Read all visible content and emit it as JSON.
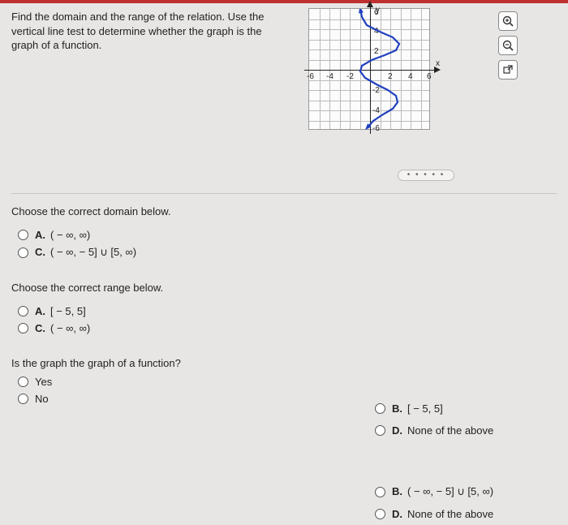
{
  "question": {
    "prompt": "Find the domain and the range of the relation. Use the vertical line test to determine whether the graph is the graph of a function."
  },
  "graph": {
    "x_ticks": [
      -6,
      -4,
      -2,
      2,
      4,
      6
    ],
    "y_ticks": [
      -6,
      -4,
      -2,
      2,
      4,
      6
    ],
    "y_label": "y",
    "x_label": "x",
    "axis_min": -6,
    "axis_max": 6,
    "grid_color": "#bbb",
    "axis_color": "#222",
    "curve_color": "#2040c0",
    "curve_points": [
      [
        -1.2,
        7.5
      ],
      [
        -1.0,
        6.5
      ],
      [
        -0.4,
        5.5
      ],
      [
        1.2,
        4.7
      ],
      [
        2.8,
        4.0
      ],
      [
        3.6,
        3.2
      ],
      [
        3.2,
        2.4
      ],
      [
        1.8,
        1.8
      ],
      [
        0.2,
        1.2
      ],
      [
        -1.0,
        0.5
      ],
      [
        -1.2,
        -0.2
      ],
      [
        -0.6,
        -1.0
      ],
      [
        0.8,
        -1.8
      ],
      [
        2.2,
        -2.5
      ],
      [
        3.2,
        -3.2
      ],
      [
        3.4,
        -4.0
      ],
      [
        2.8,
        -4.8
      ],
      [
        1.6,
        -5.5
      ],
      [
        0.4,
        -6.3
      ],
      [
        -0.4,
        -7.2
      ]
    ]
  },
  "zoom": {
    "zoom_in_icon": "⊕",
    "zoom_out_icon": "⊖",
    "popout_icon": "↗"
  },
  "q_domain": {
    "prompt": "Choose the correct domain below.",
    "options": {
      "A": "( − ∞, ∞)",
      "B": "[ − 5, 5]",
      "C": "( − ∞, − 5] ∪ [5, ∞)",
      "D": "None of the above"
    }
  },
  "q_range": {
    "prompt": "Choose the correct range below.",
    "options": {
      "A": "[ − 5, 5]",
      "B": "( − ∞, − 5] ∪ [5, ∞)",
      "C": "( − ∞, ∞)",
      "D": "None of the above"
    }
  },
  "q_func": {
    "prompt": "Is the graph the graph of a function?",
    "options": {
      "yes": "Yes",
      "no": "No"
    }
  },
  "ellipsis": "• • • • •"
}
